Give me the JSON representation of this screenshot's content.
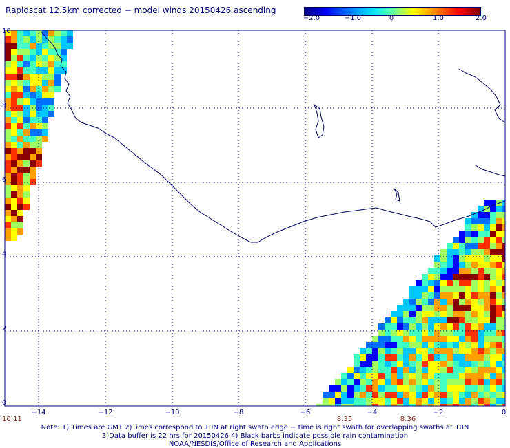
{
  "title": "Rapidscat 12.5km corrected − model winds 20150426 ascending",
  "colorbar": {
    "labels": [
      "−2.0",
      "−1.0",
      "0",
      "1.0",
      "2.0"
    ],
    "min": -2.0,
    "max": 2.0,
    "colors": [
      "#00007f",
      "#0000ff",
      "#00e0ff",
      "#ffff00",
      "#ff0000",
      "#800000"
    ]
  },
  "axes": {
    "lat_labels": [
      "10",
      "8",
      "6",
      "4",
      "2",
      "0"
    ],
    "lon_labels": [
      "−14",
      "−12",
      "−10",
      "−8",
      "−6",
      "−4",
      "−2",
      "0"
    ],
    "lat_range": [
      0,
      10
    ],
    "lon_range": [
      -15,
      0
    ],
    "grid": "dotted"
  },
  "times": {
    "left": "10:11",
    "mid1": "8:35",
    "mid2": "8:36"
  },
  "notes": [
    "Note: 1) Times are GMT 2)Times correspond to 10N at right swath edge − time is right swath for overlapping swaths at 10N",
    "3)Data buffer is 22 hrs for 20150426 4) Black barbs indicate possible rain contamination",
    "NOAA/NESDIS/Office of Research and Applications"
  ],
  "colors": {
    "text": "#000080",
    "coast": "#000066",
    "grid": "#000080",
    "time_label": "#8b1a1a",
    "dark_red": "#8b0000"
  }
}
